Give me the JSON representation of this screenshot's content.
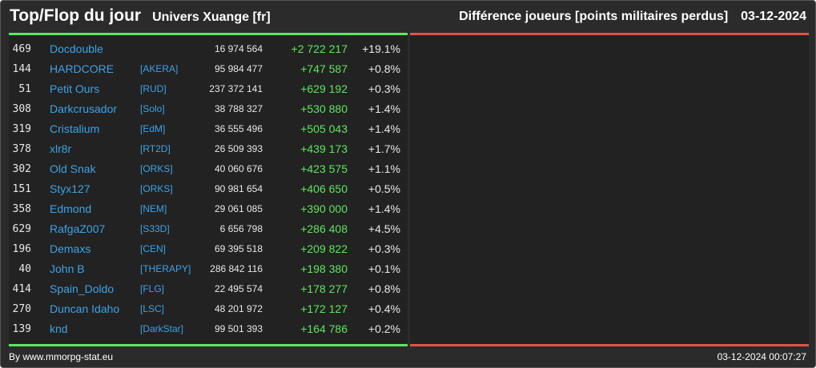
{
  "header": {
    "title": "Top/Flop du jour",
    "universe": "Univers Xuange [fr]",
    "metric": "Différence joueurs [points militaires perdus]",
    "date": "03-12-2024"
  },
  "colors": {
    "background": "#2b2b2b",
    "panel": "#222222",
    "top_accent": "#5ce65c",
    "flop_accent": "#e0534a",
    "player_link": "#3ba3e8",
    "gain": "#5ce65c"
  },
  "top": [
    {
      "rank": "469",
      "name": "Docdouble",
      "tag": "",
      "points": "16 974 564",
      "diff": "+2 722 217",
      "pct": "+19.1%"
    },
    {
      "rank": "144",
      "name": "HARDCORE",
      "tag": "[AKERA]",
      "points": "95 984 477",
      "diff": "+747 587",
      "pct": "+0.8%"
    },
    {
      "rank": "51",
      "name": "Petit Ours",
      "tag": "[RUD]",
      "points": "237 372 141",
      "diff": "+629 192",
      "pct": "+0.3%"
    },
    {
      "rank": "308",
      "name": "Darkcrusador",
      "tag": "[Solo]",
      "points": "38 788 327",
      "diff": "+530 880",
      "pct": "+1.4%"
    },
    {
      "rank": "319",
      "name": "Cristalium",
      "tag": "[EdM]",
      "points": "36 555 496",
      "diff": "+505 043",
      "pct": "+1.4%"
    },
    {
      "rank": "378",
      "name": "xlr8r",
      "tag": "[RT2D]",
      "points": "26 509 393",
      "diff": "+439 173",
      "pct": "+1.7%"
    },
    {
      "rank": "302",
      "name": "Old Snak",
      "tag": "[ORKS]",
      "points": "40 060 676",
      "diff": "+423 575",
      "pct": "+1.1%"
    },
    {
      "rank": "151",
      "name": "Styx127",
      "tag": "[ORKS]",
      "points": "90 981 654",
      "diff": "+406 650",
      "pct": "+0.5%"
    },
    {
      "rank": "358",
      "name": "Edmond",
      "tag": "[NEM]",
      "points": "29 061 085",
      "diff": "+390 000",
      "pct": "+1.4%"
    },
    {
      "rank": "629",
      "name": "RafgaZ007",
      "tag": "[S33D]",
      "points": "6 656 798",
      "diff": "+286 408",
      "pct": "+4.5%"
    },
    {
      "rank": "196",
      "name": "Demaxs",
      "tag": "[CEN]",
      "points": "69 395 518",
      "diff": "+209 822",
      "pct": "+0.3%"
    },
    {
      "rank": "40",
      "name": "John B",
      "tag": "[THERAPY]",
      "points": "286 842 116",
      "diff": "+198 380",
      "pct": "+0.1%"
    },
    {
      "rank": "414",
      "name": "Spain_Doldo",
      "tag": "[FLG]",
      "points": "22 495 574",
      "diff": "+178 277",
      "pct": "+0.8%"
    },
    {
      "rank": "270",
      "name": "Duncan Idaho",
      "tag": "[LSC]",
      "points": "48 201 972",
      "diff": "+172 127",
      "pct": "+0.4%"
    },
    {
      "rank": "139",
      "name": "knd",
      "tag": "[DarkStar]",
      "points": "99 501 393",
      "diff": "+164 786",
      "pct": "+0.2%"
    }
  ],
  "flop": [],
  "footer": {
    "credit": "By www.mmorpg-stat.eu",
    "timestamp": "03-12-2024 00:07:27"
  }
}
